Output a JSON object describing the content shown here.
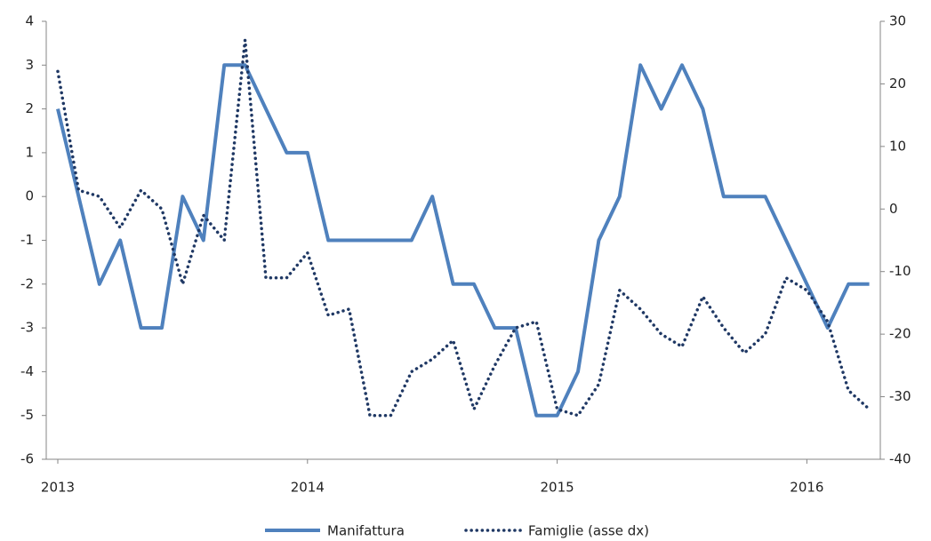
{
  "chart_data": {
    "type": "line",
    "categories": [
      "2013",
      null,
      null,
      null,
      null,
      null,
      null,
      null,
      null,
      null,
      null,
      null,
      "2014",
      null,
      null,
      null,
      null,
      null,
      null,
      null,
      null,
      null,
      null,
      null,
      "2015",
      null,
      null,
      null,
      null,
      null,
      null,
      null,
      null,
      null,
      null,
      null,
      "2016",
      null,
      null,
      null
    ],
    "series": [
      {
        "name": "Manifattura",
        "color": "#4f81bd",
        "style": "solid",
        "values": [
          2,
          0,
          -2,
          -1,
          -3,
          -3,
          0,
          -1,
          3,
          3,
          2,
          1,
          1,
          -1,
          -1,
          -1,
          -1,
          -1,
          0,
          -2,
          -2,
          -3,
          -3,
          -5,
          -5,
          -4,
          -1,
          0,
          3,
          2,
          3,
          2,
          0,
          0,
          0,
          -1,
          -2,
          -3,
          -2,
          -2
        ]
      },
      {
        "name": "Famiglie (asse dx)",
        "color": "#1f3864",
        "style": "dotted",
        "axis": "y2",
        "values": [
          22,
          3,
          2,
          -3,
          3,
          0,
          -12,
          -1,
          -5,
          27,
          -11,
          -11,
          -7,
          -17,
          -16,
          -33,
          -33,
          -26,
          -24,
          -21,
          -32,
          -25,
          -19,
          -18,
          -32,
          -33,
          -28,
          -13,
          -16,
          -20,
          -22,
          -14,
          -19,
          -23,
          -20,
          -11,
          -13,
          -18,
          -29,
          -32
        ]
      }
    ],
    "ylim": [
      -6,
      4
    ],
    "yticks": [
      -6,
      -5,
      -4,
      -3,
      -2,
      -1,
      0,
      1,
      2,
      3,
      4
    ],
    "y2lim": [
      -40,
      30
    ],
    "y2ticks": [
      -40,
      -30,
      -20,
      -10,
      0,
      10,
      20,
      30
    ],
    "grid": false,
    "legend": "bottom"
  }
}
